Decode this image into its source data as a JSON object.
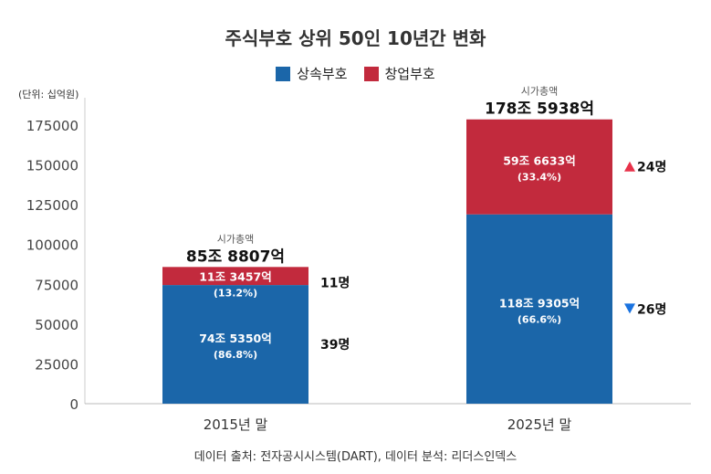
{
  "chart_data": {
    "type": "bar",
    "stacked": true,
    "title": "주식부호 상위 50인 10년간 변화",
    "unit_label": "(단위: 십억원)",
    "categories": [
      "2015년 말",
      "2025년 말"
    ],
    "series": [
      {
        "name": "상속부호",
        "color": "#1b66a9",
        "values": [
          74535.0,
          118930.5
        ],
        "labels": [
          "74조 5350억",
          "118조 9305억"
        ],
        "pct": [
          "(86.8%)",
          "(66.6%)"
        ],
        "counts": [
          "39명",
          "26명"
        ],
        "change": [
          "",
          "down"
        ]
      },
      {
        "name": "창업부호",
        "color": "#c22a3d",
        "values": [
          11345.7,
          59663.3
        ],
        "labels": [
          "11조 3457억",
          "59조 6633억"
        ],
        "pct": [
          "(13.2%)",
          "(33.4%)"
        ],
        "counts": [
          "11명",
          "24명"
        ],
        "change": [
          "",
          "up"
        ]
      }
    ],
    "totals": {
      "caption": "시가총액",
      "labels": [
        "85조 8807억",
        "178조 5938억"
      ]
    },
    "ylim": [
      0,
      175000
    ],
    "yticks": [
      0,
      25000,
      50000,
      75000,
      100000,
      125000,
      150000,
      175000
    ],
    "grid": false,
    "legend": "top-center",
    "up_color": "#e8324a",
    "down_color": "#1a73e0"
  },
  "source": "데이터 출처: 전자공시시스템(DART), 데이터 분석: 리더스인덱스"
}
